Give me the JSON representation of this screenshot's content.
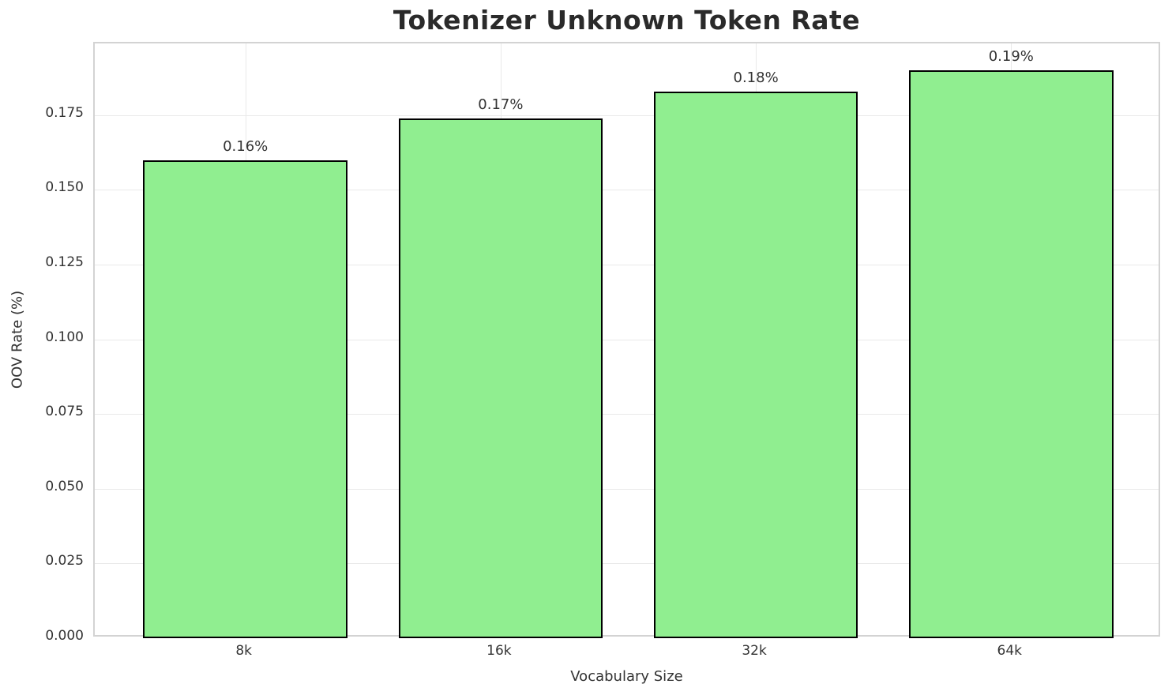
{
  "chart_data": {
    "type": "bar",
    "title": "Tokenizer Unknown Token Rate",
    "xlabel": "Vocabulary Size",
    "ylabel": "OOV Rate (%)",
    "categories": [
      "8k",
      "16k",
      "32k",
      "64k"
    ],
    "values": [
      0.16,
      0.174,
      0.183,
      0.19
    ],
    "bar_labels": [
      "0.16%",
      "0.17%",
      "0.18%",
      "0.19%"
    ],
    "yticks": [
      0.0,
      0.025,
      0.05,
      0.075,
      0.1,
      0.125,
      0.15,
      0.175
    ],
    "ytick_labels": [
      "0.000",
      "0.025",
      "0.050",
      "0.075",
      "0.100",
      "0.125",
      "0.150",
      "0.175"
    ],
    "ylim": [
      0,
      0.199
    ],
    "grid": true,
    "legend_position": "none",
    "colors": {
      "bar_fill": "#90EE90",
      "bar_edge": "#000000",
      "grid": "#e9e9e9",
      "spine": "#d3d3d3",
      "title_text": "#2a2a2a",
      "tick_text": "#333333"
    }
  }
}
